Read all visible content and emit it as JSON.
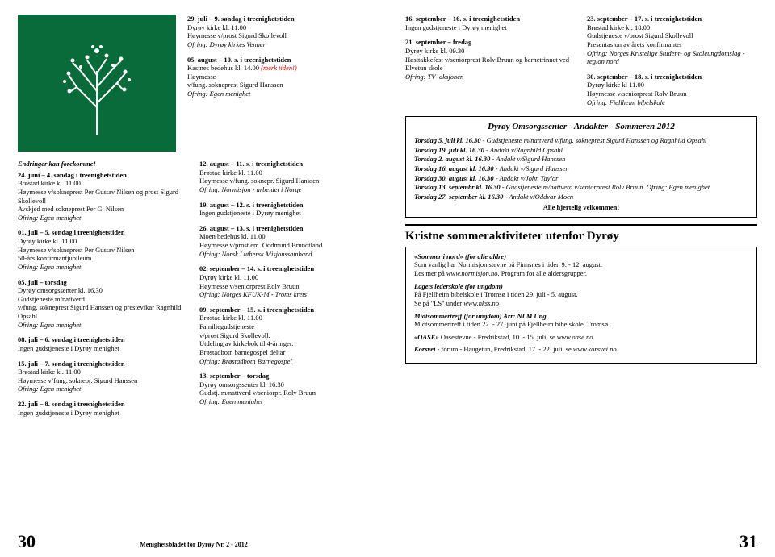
{
  "left": {
    "tree": {
      "line_color": "#ffffff",
      "bg_color": "#0a6b3a"
    },
    "top_right_col": [
      {
        "t": "29. juli – 9. søndag i treenighetstiden",
        "l2": "Dyrøy kirke kl. 11.00",
        "b": "Høymesse v/prost Sigurd Skollevoll",
        "i": "Ofring: Dyrøy kirkes Venner"
      },
      {
        "t": "05. august – 10. s. i treenighetstiden",
        "l2": "Kastnes bedehus kl. 14.00",
        "red": " (merk tiden!)",
        "b": "Høymesse\nv/fung. sokneprest Sigurd Hanssen",
        "i": "Ofring: Egen menighet"
      }
    ],
    "change_note": "Endringer kan forekomme!",
    "colL": [
      {
        "t": "24. juni – 4. søndag i treenighetstiden",
        "l2": "Brøstad kirke kl. 11.00",
        "b": "Høymesse v/sokneprest Per Gustav Nilsen og prost Sigurd Skollevoll\nAvskjed med sokneprest Per G. Nilsen",
        "i": "Ofring: Egen menighet"
      },
      {
        "t": "01. juli – 5. søndag i treenighetstiden",
        "l2": "Dyrøy kirke kl. 11.00",
        "b": "Høymesse v/sokneprest Per Gustav Nilsen\n50-års konfirmantjubileum",
        "i": "Ofring: Egen menighet"
      },
      {
        "t": "05. juli – torsdag",
        "l2": "Dyrøy omsorgssenter kl. 16.30",
        "b": "Gudstjeneste m/nattverd\nv/fung. sokneprest Sigurd Hanssen og prestevikar Ragnhild Opsahl",
        "i": "Ofring: Egen menighet"
      },
      {
        "t": "08. juli – 6. søndag i treenighetstiden",
        "b": "Ingen gudstjeneste i Dyrøy menighet"
      },
      {
        "t": "15. juli – 7. søndag i treenighetstiden",
        "l2": "Brøstad kirke kl. 11.00",
        "b": "Høymesse v/fung. soknepr. Sigurd Hanssen",
        "i": "Ofring: Egen menighet"
      },
      {
        "t": "22. juli – 8. søndag i treenighetstiden",
        "b": "Ingen gudstjeneste i Dyrøy menighet"
      }
    ],
    "colR": [
      {
        "t": "12. august – 11. s. i treenighetstiden",
        "l2": "Brøstad kirke kl. 11.00",
        "b": "Høymesse v/fung. soknepr. Sigurd Hanssen",
        "i": "Ofring: Normisjon - arbeidet i Norge"
      },
      {
        "t": "19. august – 12. s. i treenighetstiden",
        "b": "Ingen gudstjeneste i Dyrøy menighet"
      },
      {
        "t": "26. august – 13. s. i treenighetstiden",
        "l2": "Moen bedehus kl. 11.00",
        "b": "Høymesse v/prost em. Oddmund Brundtland",
        "i": "Ofring: Norsk Luthersk Misjonssamband"
      },
      {
        "t": "02. september – 14. s. i treenighetstiden",
        "l2": "Dyrøy kirke kl. 11.00",
        "b": "Høymesse v/seniorprest Rolv Bruun",
        "i": "Ofring: Norges KFUK-M - Troms krets"
      },
      {
        "t": "09. september – 15. s. i treenighetstiden",
        "l2": "Brøstad kirke kl. 11.00",
        "b": "Familiegudstjeneste\nv/prost Sigurd Skollevoll.\nUtdeling av kirkebok til 4-åringer.\nBrøstadbotn barnegospel deltar",
        "i": "Ofring: Brøstadbotn Barnegospel"
      },
      {
        "t": "13. september – torsdag",
        "l2": "Dyrøy omsorgssenter kl. 16.30",
        "b": "Gudstj. m/nattverd v/seniorpr. Rolv Bruun",
        "i": "Ofring: Egen menighet"
      }
    ],
    "footer": "Menighetsbladet for Dyrøy  Nr. 2 - 2012",
    "pagenum": "30"
  },
  "right": {
    "colL": [
      {
        "t": "16. september – 16. s. i treenighetstiden",
        "b": "Ingen gudstjeneste i Dyrøy menighet"
      },
      {
        "t": "21. september – fredag",
        "l2": "Dyrøy kirke kl. 09.30",
        "b": "Høsttakkefest v/seniorprest Rolv Bruun og barnetrinnet ved Elvetun skole",
        "i": "Ofring: TV- aksjonen"
      }
    ],
    "colR": [
      {
        "t": "23. september – 17. s. i treenighetstiden",
        "l2": "Brøstad kirke kl. 18.00",
        "b": "Gudstjeneste v/prost Sigurd Skollevoll\nPresentasjon av årets konfirmanter",
        "i": "Ofring: Norges Kristelige Student- og Skoleungdomslag -region nord"
      },
      {
        "t": "30. september – 18. s. i treenighetstiden",
        "l2": "Dyrøy kirke kl 11.00",
        "b": "Høymesse v/seniorprest Rolv Bruun",
        "i": "Ofring: Fjellheim bibelskole"
      }
    ],
    "box1": {
      "title": "Dyrøy Omsorgssenter - Andakter - Sommeren 2012",
      "lines": [
        {
          "b": "Torsdag 5. juli kl. 16.30",
          "i": " - Gudstjeneste m/nattverd v/fung. sokneprest Sigurd Hanssen og Ragnhild Opsahl"
        },
        {
          "b": "Torsdag 19. juli kl. 16.30",
          "i": " - Andakt v/Ragnhild Opsahl"
        },
        {
          "b": "Torsdag 2. august kl. 16.30",
          "i": " - Andakt v/Sigurd Hanssen"
        },
        {
          "b": "Torsdag 16. august kl. 16.30",
          "i": " - Andakt v/Sigurd Hanssen"
        },
        {
          "b": "Torsdag 30. august kl. 16.30",
          "i": " - Andakt v/John Taylor"
        },
        {
          "b": "Torsdag 13. septembr kl. 16.30",
          "i": " - Gudstjeneste m/nattverd v/seniorprest Rolv Bruun.  Ofring: Egen menighet"
        },
        {
          "b": "Torsdag 27. september kl. 16.30",
          "i": " - Andakt v/Oddvar Moen"
        }
      ],
      "welcome": "Alle hjertelig velkommen!"
    },
    "box2": {
      "title": "Kristne sommeraktiviteter utenfor Dyrøy",
      "sections": [
        {
          "h": "«Sommer i nord» (for alle aldre)",
          "body": "Som vanlig har Normisjon stevne på Finnsnes i tiden 9. - 12. august.\nLes mer på ",
          "ital": "www.normisjon.no",
          "tail": ". Program for alle aldersgrupper."
        },
        {
          "h": "Lagets lederskole (for ungdom)",
          "body": "På Fjellheim bibelskole i Tromsø i tiden 29. juli - 5. august.\nSe på \"LS\" under ",
          "ital": "www.nkss.no",
          "tail": ""
        },
        {
          "h": "Midtsommertreff  (for ungdom) Arr: NLM Ung.",
          "body": "Midtsommertreff i tiden 22. - 27. juni på Fjellheim bibelskole, Tromsø."
        },
        {
          "h": "«OASE»",
          "body": " Oasestevne  -  Fredrikstad,  10. - 15. juli, se ",
          "ital": "www.oase.no",
          "tail": ""
        },
        {
          "h": "Korsvei",
          "body": " - forum - Haugetun, Fredrikstad,  17. - 22. juli,  se ",
          "ital": "www.korsvei.no",
          "tail": ""
        }
      ]
    },
    "pagenum": "31"
  }
}
